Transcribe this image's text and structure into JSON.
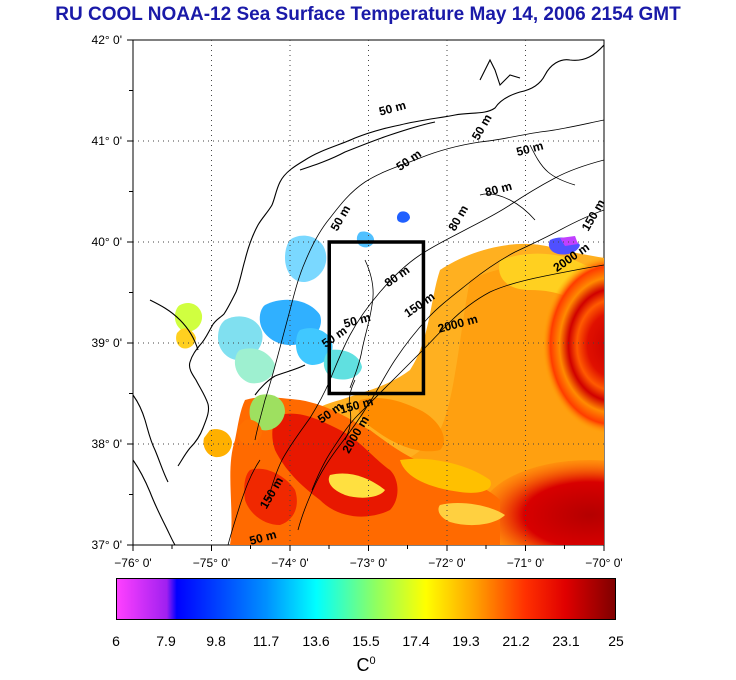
{
  "title": "RU COOL  NOAA-12 Sea Surface Temperature May 14, 2006 2154 GMT",
  "map": {
    "lon_ticks": [
      "−76° 0'",
      "−75° 0'",
      "−74° 0'",
      "−73° 0'",
      "−72° 0'",
      "−71° 0'",
      "−70° 0'"
    ],
    "lat_ticks": [
      "42° 0'",
      "41° 0'",
      "40° 0'",
      "39° 0'",
      "38° 0'",
      "37° 0'"
    ],
    "lon_range": [
      -76,
      -70
    ],
    "lat_range": [
      37,
      42
    ],
    "study_box": {
      "lon": [
        -73.5,
        -72.3
      ],
      "lat": [
        38.5,
        40.0
      ]
    },
    "contour_labels": [
      {
        "text": "50 m",
        "lon": -72.85,
        "lat": 41.25
      },
      {
        "text": "50 m",
        "lon": -72.6,
        "lat": 40.7
      },
      {
        "text": "50 m",
        "lon": -73.4,
        "lat": 40.1
      },
      {
        "text": "50 m",
        "lon": -73.3,
        "lat": 39.15
      },
      {
        "text": "50 m",
        "lon": -73.55,
        "lat": 38.95
      },
      {
        "text": "50 m",
        "lon": -71.6,
        "lat": 41.0
      },
      {
        "text": "50 m",
        "lon": -71.1,
        "lat": 40.85
      },
      {
        "text": "80 m",
        "lon": -72.75,
        "lat": 39.55
      },
      {
        "text": "80 m",
        "lon": -71.9,
        "lat": 40.1
      },
      {
        "text": "80 m",
        "lon": -71.5,
        "lat": 40.45
      },
      {
        "text": "150 m",
        "lon": -72.5,
        "lat": 39.25
      },
      {
        "text": "150 m",
        "lon": -70.2,
        "lat": 40.1
      },
      {
        "text": "2000 m",
        "lon": -72.1,
        "lat": 39.1
      },
      {
        "text": "2000 m",
        "lon": -70.6,
        "lat": 39.7
      },
      {
        "text": "2000 m",
        "lon": -73.25,
        "lat": 37.9
      },
      {
        "text": "150 m",
        "lon": -73.35,
        "lat": 38.3
      },
      {
        "text": "50 m",
        "lon": -73.6,
        "lat": 38.2
      },
      {
        "text": "150 m",
        "lon": -74.3,
        "lat": 37.35
      },
      {
        "text": "50 m",
        "lon": -74.5,
        "lat": 37.0
      }
    ]
  },
  "colorbar": {
    "ticks": [
      "6",
      "7.9",
      "9.8",
      "11.7",
      "13.6",
      "15.5",
      "17.4",
      "19.3",
      "21.2",
      "23.1",
      "25"
    ],
    "label": "C",
    "label_sup": "0"
  }
}
